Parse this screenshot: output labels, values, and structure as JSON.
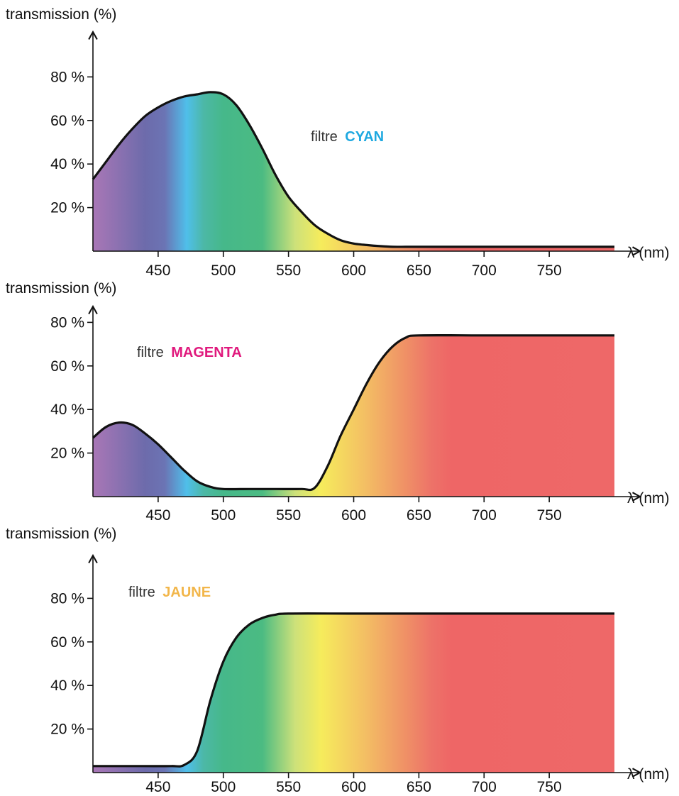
{
  "chart_data": [
    {
      "type": "area",
      "id": "cyan",
      "ylabel": "transmission (%)",
      "xlabel": "λ (nm)",
      "xlim": [
        400,
        800
      ],
      "ylim": [
        0,
        100
      ],
      "x_ticks": [
        450,
        500,
        550,
        600,
        650,
        700,
        750
      ],
      "y_ticks": [
        20,
        40,
        60,
        80
      ],
      "y_tick_labels": [
        "20 %",
        "40 %",
        "60 %",
        "80 %"
      ],
      "annotation": {
        "prefix": "filtre",
        "name": "CYAN",
        "color": "#1ea8e0"
      },
      "series": [
        {
          "x": [
            400,
            410,
            420,
            430,
            440,
            450,
            460,
            470,
            480,
            490,
            500,
            510,
            520,
            530,
            540,
            550,
            560,
            570,
            580,
            590,
            600,
            610,
            620,
            630,
            640,
            650,
            700,
            750,
            800
          ],
          "y": [
            33,
            41,
            49,
            56,
            62,
            66,
            69,
            71,
            72,
            73,
            72,
            67,
            58,
            47,
            35,
            25,
            18,
            12,
            8,
            5,
            3.5,
            2.8,
            2.3,
            2,
            2,
            2,
            2,
            2,
            2
          ]
        }
      ]
    },
    {
      "type": "area",
      "id": "magenta",
      "ylabel": "transmission (%)",
      "xlabel": "λ (nm)",
      "xlim": [
        400,
        800
      ],
      "ylim": [
        0,
        100
      ],
      "x_ticks": [
        450,
        500,
        550,
        600,
        650,
        700,
        750
      ],
      "y_ticks": [
        20,
        40,
        60,
        80
      ],
      "y_tick_labels": [
        "20 %",
        "40 %",
        "60 %",
        "80 %"
      ],
      "annotation": {
        "prefix": "filtre",
        "name": "MAGENTA",
        "color": "#e0197d"
      },
      "series": [
        {
          "x": [
            400,
            410,
            420,
            430,
            440,
            450,
            460,
            470,
            480,
            490,
            500,
            520,
            540,
            560,
            570,
            580,
            590,
            600,
            610,
            620,
            630,
            640,
            650,
            700,
            750,
            800
          ],
          "y": [
            27,
            32,
            34,
            33,
            29,
            24,
            18,
            12,
            7,
            4.5,
            3.5,
            3.5,
            3.5,
            3.5,
            4,
            14,
            28,
            40,
            52,
            62,
            69,
            73,
            74,
            74,
            74,
            74
          ]
        }
      ]
    },
    {
      "type": "area",
      "id": "jaune",
      "ylabel": "transmission (%)",
      "xlabel": "λ (nm)",
      "xlim": [
        400,
        800
      ],
      "ylim": [
        0,
        100
      ],
      "x_ticks": [
        450,
        500,
        550,
        600,
        650,
        700,
        750
      ],
      "y_ticks": [
        20,
        40,
        60,
        80
      ],
      "y_tick_labels": [
        "20 %",
        "40 %",
        "60 %",
        "80 %"
      ],
      "annotation": {
        "prefix": "filtre",
        "name": "JAUNE",
        "color": "#f2b64a"
      },
      "series": [
        {
          "x": [
            400,
            420,
            440,
            460,
            470,
            480,
            490,
            500,
            510,
            520,
            530,
            540,
            550,
            600,
            650,
            700,
            750,
            800
          ],
          "y": [
            3,
            3,
            3,
            3,
            3.5,
            10,
            33,
            51,
            62,
            68,
            71,
            72.5,
            73,
            73,
            73,
            73,
            73,
            73
          ]
        }
      ]
    }
  ],
  "spectrum_colors": [
    {
      "nm": 400,
      "color": "#a977b6"
    },
    {
      "nm": 440,
      "color": "#6d6bab"
    },
    {
      "nm": 455,
      "color": "#6b74b4"
    },
    {
      "nm": 472,
      "color": "#4fbfea"
    },
    {
      "nm": 485,
      "color": "#4cb8a6"
    },
    {
      "nm": 500,
      "color": "#46b88a"
    },
    {
      "nm": 530,
      "color": "#4bbb82"
    },
    {
      "nm": 555,
      "color": "#cde17a"
    },
    {
      "nm": 575,
      "color": "#f6ec5c"
    },
    {
      "nm": 610,
      "color": "#f3bd64"
    },
    {
      "nm": 660,
      "color": "#ed7268"
    },
    {
      "nm": 675,
      "color": "#ee6666"
    },
    {
      "nm": 800,
      "color": "#ee6868"
    }
  ]
}
